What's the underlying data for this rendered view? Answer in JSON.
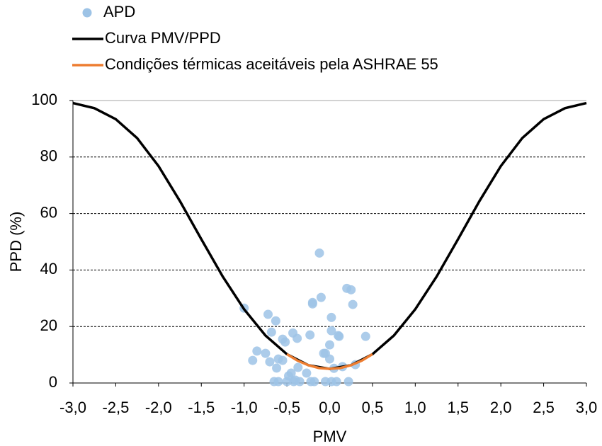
{
  "chart_data": {
    "type": "scatter",
    "x_label": "PMV",
    "y_label": "PPD (%)",
    "xlim": [
      -3,
      3
    ],
    "ylim": [
      0,
      100
    ],
    "xticks": [
      {
        "value": -3,
        "label": "-3,0"
      },
      {
        "value": -2.5,
        "label": "-2,5"
      },
      {
        "value": -2,
        "label": "-2,0"
      },
      {
        "value": -1.5,
        "label": "-1,5"
      },
      {
        "value": -1,
        "label": "-1,0"
      },
      {
        "value": -0.5,
        "label": "-0,5"
      },
      {
        "value": 0,
        "label": "0,0"
      },
      {
        "value": 0.5,
        "label": "0,5"
      },
      {
        "value": 1,
        "label": "1,0"
      },
      {
        "value": 1.5,
        "label": "1,5"
      },
      {
        "value": 2,
        "label": "2,0"
      },
      {
        "value": 2.5,
        "label": "2,5"
      },
      {
        "value": 3,
        "label": "3,0"
      }
    ],
    "yticks": [
      0,
      20,
      40,
      60,
      80,
      100
    ],
    "grid": true,
    "legend": "top-left",
    "series": [
      {
        "name": "APD",
        "type": "scatter",
        "color": "#9dc3e6",
        "x": [
          -1.0,
          -0.9,
          -0.85,
          -0.75,
          -0.72,
          -0.7,
          -0.68,
          -0.65,
          -0.63,
          -0.62,
          -0.6,
          -0.6,
          -0.55,
          -0.55,
          -0.52,
          -0.5,
          -0.48,
          -0.45,
          -0.43,
          -0.42,
          -0.4,
          -0.38,
          -0.37,
          -0.35,
          -0.27,
          -0.23,
          -0.22,
          -0.2,
          -0.2,
          -0.18,
          -0.1,
          -0.12,
          -0.07,
          -0.05,
          -0.05,
          0.0,
          0.0,
          0.02,
          0.02,
          0.02,
          0.05,
          0.08,
          0.1,
          0.11,
          0.15,
          0.2,
          0.22,
          0.25,
          0.27,
          0.3,
          0.42
        ],
        "values": [
          26.5,
          8,
          11.3,
          10.5,
          24.3,
          7.5,
          18,
          0.5,
          22,
          5.3,
          8.5,
          0.5,
          15.5,
          8,
          14.5,
          0.5,
          2.5,
          3.5,
          17.7,
          0.5,
          1,
          15.8,
          5.5,
          0.5,
          3.5,
          17,
          0.5,
          28,
          28.5,
          0.5,
          30.3,
          46,
          10.5,
          10.5,
          0.5,
          13.5,
          8.5,
          23.2,
          18.5,
          0.5,
          5.2,
          0.5,
          16.8,
          16.5,
          5.8,
          33.5,
          0.5,
          33,
          27.8,
          6.5,
          16.5
        ]
      },
      {
        "name": "Curva PMV/PPD",
        "type": "line",
        "color": "#000000",
        "x": [
          -3,
          -2.75,
          -2.5,
          -2.25,
          -2,
          -1.75,
          -1.5,
          -1.25,
          -1,
          -0.75,
          -0.5,
          -0.25,
          0,
          0.25,
          0.5,
          0.75,
          1,
          1.25,
          1.5,
          1.75,
          2,
          2.25,
          2.5,
          2.75,
          3
        ],
        "values": [
          99.1,
          97.3,
          93.4,
          86.7,
          76.8,
          64.4,
          50.9,
          37.7,
          26.1,
          16.8,
          10.2,
          6.3,
          5,
          6.3,
          10.2,
          16.8,
          26.1,
          37.7,
          50.9,
          64.4,
          76.8,
          86.7,
          93.4,
          97.3,
          99.1
        ]
      },
      {
        "name": "Condições térmicas aceitáveis pela ASHRAE 55",
        "type": "line",
        "color": "#ed7d31",
        "x": [
          -0.5,
          -0.375,
          -0.25,
          -0.125,
          0,
          0.125,
          0.25,
          0.375,
          0.5
        ],
        "values": [
          10.2,
          7.9,
          6.3,
          5.3,
          5,
          5.3,
          6.3,
          7.9,
          10.2
        ]
      }
    ]
  }
}
